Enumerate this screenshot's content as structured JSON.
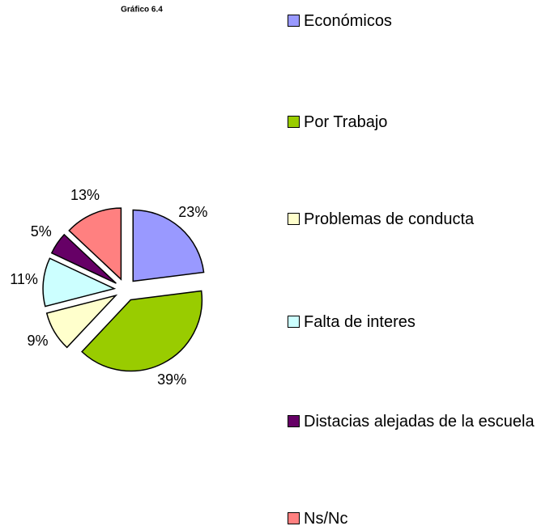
{
  "chart_data": {
    "type": "pie",
    "title": "Gráfico 6.4",
    "categories": [
      "Económicos",
      "Por Trabajo",
      "Problemas de conducta",
      "Falta de interes",
      "Distacias alejadas de la escuela",
      "Ns/Nc"
    ],
    "values": [
      23,
      39,
      9,
      11,
      5,
      13
    ],
    "value_labels": [
      "23%",
      "39%",
      "9%",
      "11%",
      "5%",
      "13%"
    ],
    "colors": [
      "#9999ff",
      "#99cc00",
      "#ffffcc",
      "#ccffff",
      "#660066",
      "#ff8080"
    ],
    "legend": "right"
  }
}
